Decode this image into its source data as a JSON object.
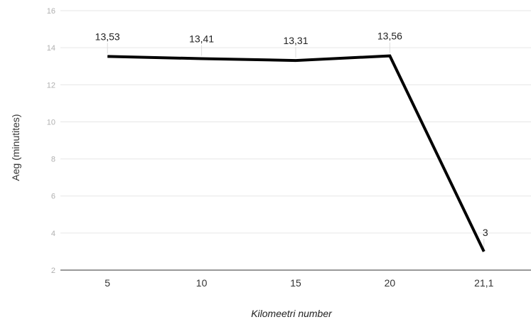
{
  "chart_data": {
    "type": "line",
    "categories": [
      "5",
      "10",
      "15",
      "20",
      "21,1"
    ],
    "series": [
      {
        "values": [
          13.53,
          13.41,
          13.31,
          13.56,
          3
        ],
        "data_labels": [
          "13,53",
          "13,41",
          "13,31",
          "13,56",
          "3"
        ]
      }
    ],
    "xlabel": "Kilomeetri number",
    "ylabel": "Aeg (minutites)",
    "ylim": [
      2,
      16
    ],
    "yticks": [
      2,
      4,
      6,
      8,
      10,
      12,
      14,
      16
    ],
    "grid": true,
    "colors": {
      "line": "#000000",
      "grid": "#e6e6e6"
    }
  }
}
